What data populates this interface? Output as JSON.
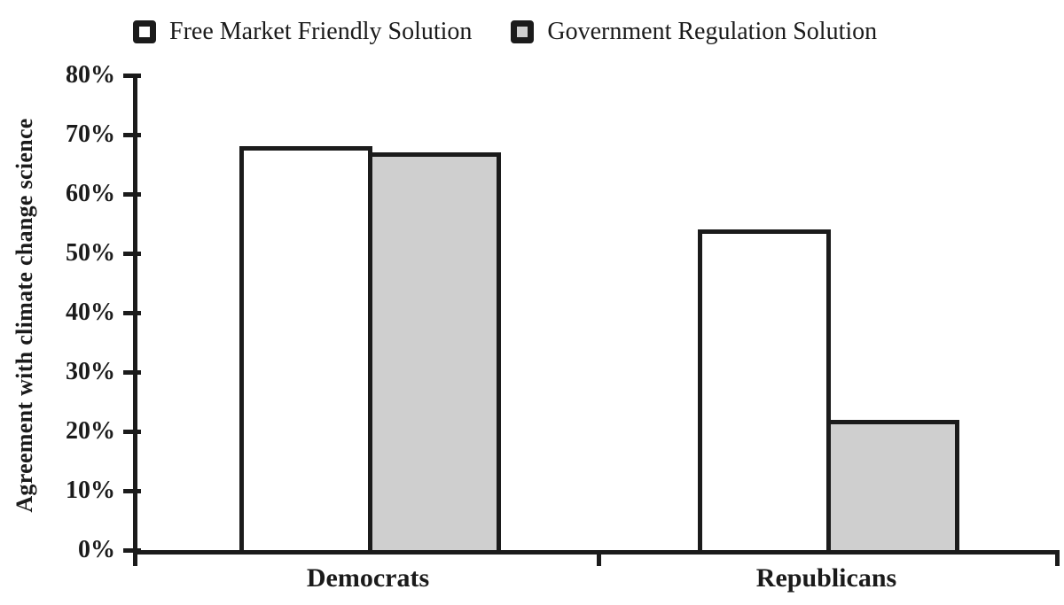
{
  "chart_data": {
    "type": "bar",
    "title": "",
    "categories": [
      "Democrats",
      "Republicans"
    ],
    "series": [
      {
        "name": "Free Market Friendly Solution",
        "color": "#ffffff",
        "values": [
          68,
          54
        ]
      },
      {
        "name": "Government Regulation Solution",
        "color": "#cfcfcf",
        "values": [
          67,
          22
        ]
      }
    ],
    "xlabel": "",
    "ylabel": "Agreement with climate change science",
    "ylim": [
      0,
      80
    ],
    "ytick_step": 10,
    "ytick_suffix": "%",
    "grid": false,
    "legend_position": "top",
    "bar_border_color": "#1b1b1b",
    "axis_color": "#1b1b1b",
    "background_color": "#ffffff"
  }
}
